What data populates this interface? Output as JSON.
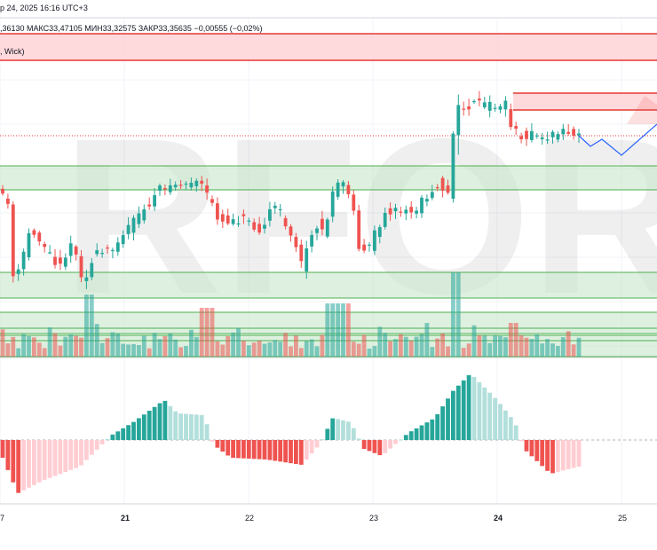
{
  "header": {
    "datetime": "р 24, 2025 16:16 UTC+3",
    "ohlc": ",36130 МАКС33,47105 МИН33,32575 ЗАКР33,35635 −0,00555 (−0,02%)",
    "indicator": ", Wick)"
  },
  "watermark": "RFOREX.c",
  "x_axis": {
    "ticks": [
      {
        "label": "7",
        "bold": false
      },
      {
        "label": "21",
        "bold": true
      },
      {
        "label": "22",
        "bold": false
      },
      {
        "label": "23",
        "bold": false
      },
      {
        "label": "24",
        "bold": true
      },
      {
        "label": "25",
        "bold": false
      }
    ]
  },
  "colors": {
    "up": "#26a69a",
    "down": "#ef5350",
    "up_light": "#b2dfdb",
    "down_light": "#ffcdd2",
    "zone_green": "#4caf50",
    "zone_red": "#e53935",
    "projection": "#2962ff"
  }
}
